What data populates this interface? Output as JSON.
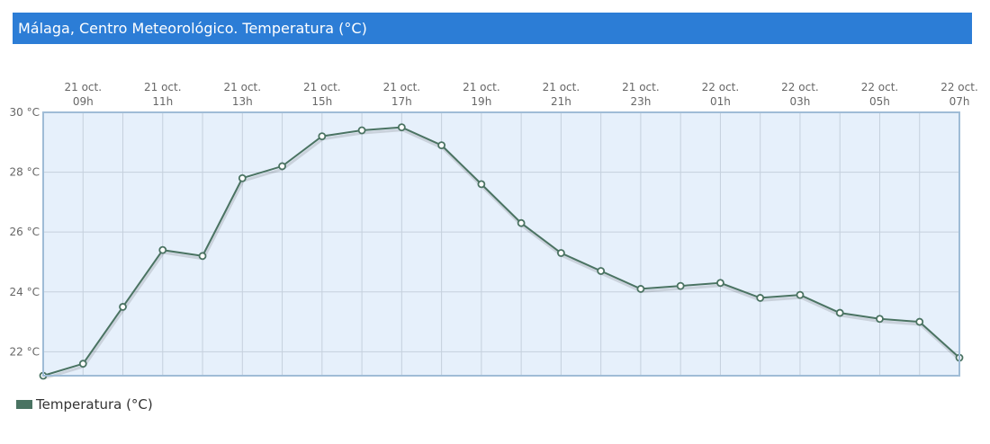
{
  "header": {
    "title": "Málaga, Centro Meteorológico. Temperatura (°C)"
  },
  "colors": {
    "header_bg": "#2c7dd6",
    "series": "#4a7362",
    "plot_bg": "#e6f0fb",
    "grid": "#c5d0dd",
    "axis": "#9fbcd6"
  },
  "chart_data": {
    "type": "line",
    "title": "Málaga, Centro Meteorológico. Temperatura (°C)",
    "x_labels": [
      "21 oct. 09h",
      "21 oct. 11h",
      "21 oct. 13h",
      "21 oct. 15h",
      "21 oct. 17h",
      "21 oct. 19h",
      "21 oct. 21h",
      "21 oct. 23h",
      "22 oct. 01h",
      "22 oct. 03h",
      "22 oct. 05h",
      "22 oct. 07h"
    ],
    "x": [
      "21 oct. 08h",
      "21 oct. 09h",
      "21 oct. 10h",
      "21 oct. 11h",
      "21 oct. 12h",
      "21 oct. 13h",
      "21 oct. 14h",
      "21 oct. 15h",
      "21 oct. 16h",
      "21 oct. 17h",
      "21 oct. 18h",
      "21 oct. 19h",
      "21 oct. 20h",
      "21 oct. 21h",
      "21 oct. 22h",
      "21 oct. 23h",
      "22 oct. 00h",
      "22 oct. 01h",
      "22 oct. 02h",
      "22 oct. 03h",
      "22 oct. 04h",
      "22 oct. 05h",
      "22 oct. 06h",
      "22 oct. 07h"
    ],
    "y_ticks": [
      "22 °C",
      "24 °C",
      "26 °C",
      "28 °C",
      "30 °C"
    ],
    "ylim": [
      21.2,
      30
    ],
    "series": [
      {
        "name": "Temperatura (°C)",
        "values": [
          21.2,
          21.6,
          23.5,
          25.4,
          25.2,
          27.8,
          28.2,
          29.2,
          29.4,
          29.5,
          28.9,
          27.6,
          26.3,
          25.3,
          24.7,
          24.1,
          24.2,
          24.3,
          23.8,
          23.9,
          23.3,
          23.1,
          23.0,
          21.8
        ]
      }
    ],
    "grid": true,
    "legend": "bottom-left"
  }
}
